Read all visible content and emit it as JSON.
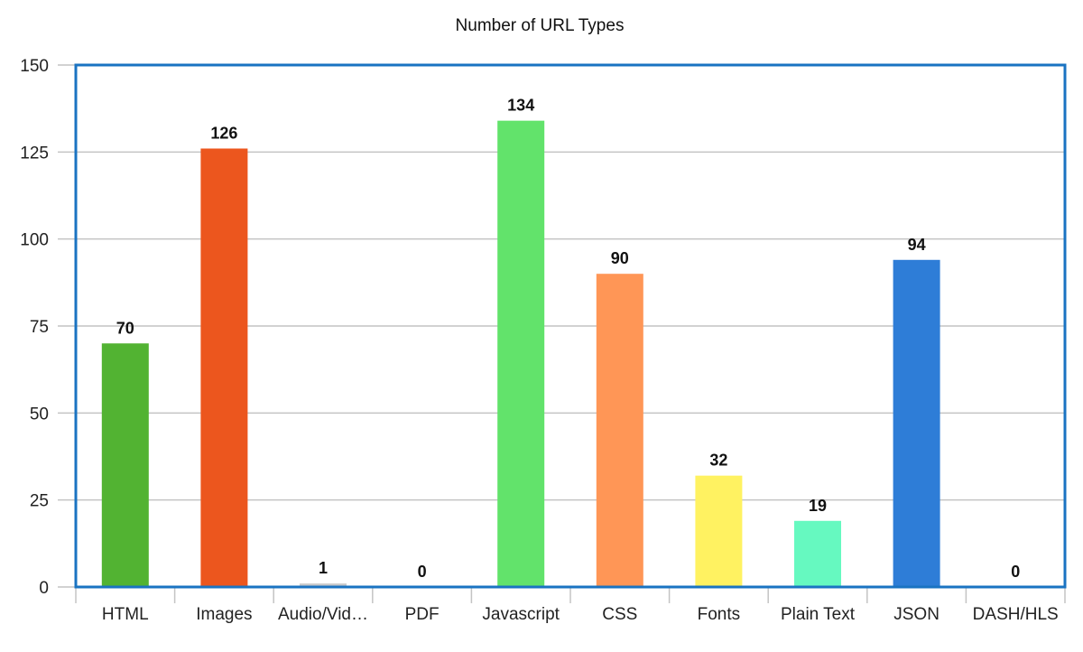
{
  "chart_data": {
    "type": "bar",
    "title": "Number of URL Types",
    "xlabel": "",
    "ylabel": "",
    "ylim": [
      0,
      150
    ],
    "yticks": [
      0,
      25,
      50,
      75,
      100,
      125,
      150
    ],
    "grid": true,
    "legend": "none",
    "categories": [
      "HTML",
      "Images",
      "Audio/Vid…",
      "PDF",
      "Javascript",
      "CSS",
      "Fonts",
      "Plain Text",
      "JSON",
      "DASH/HLS"
    ],
    "values": [
      70,
      126,
      1,
      0,
      134,
      90,
      32,
      19,
      94,
      0
    ],
    "data_labels": [
      "70",
      "126",
      "1",
      "0",
      "134",
      "90",
      "32",
      "19",
      "94",
      "0"
    ],
    "colors": [
      "#52b332",
      "#ec561e",
      "#c9c9c9",
      "#c9c9c9",
      "#62e36b",
      "#ff9656",
      "#fff261",
      "#66f9c0",
      "#2e7dd7",
      "#c9c9c9"
    ],
    "frame_color": "#1a73c2"
  }
}
